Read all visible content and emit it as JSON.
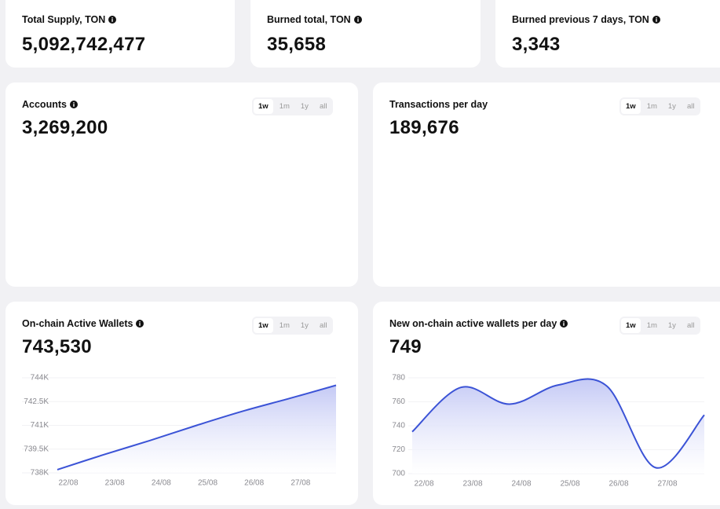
{
  "stats": [
    {
      "label": "Total Supply, TON",
      "value": "5,092,742,477"
    },
    {
      "label": "Burned total, TON",
      "value": "35,658"
    },
    {
      "label": "Burned previous 7 days, TON",
      "value": "3,343"
    }
  ],
  "panels": [
    {
      "title": "Accounts",
      "value": "3,269,200",
      "ranges": [
        "1w",
        "1m",
        "1y",
        "all"
      ]
    },
    {
      "title": "Transactions per day",
      "value": "189,676",
      "ranges": [
        "1w",
        "1m",
        "1y",
        "all"
      ]
    },
    {
      "title": "On-chain Active Wallets",
      "value": "743,530",
      "ranges": [
        "1w",
        "1m",
        "1y",
        "all"
      ]
    },
    {
      "title": "New on-chain active wallets per day",
      "value": "749",
      "ranges": [
        "1w",
        "1m",
        "1y",
        "all"
      ]
    }
  ],
  "chart_data": [
    {
      "type": "line",
      "categories": [
        "22/08",
        "23/08",
        "24/08",
        "25/08",
        "26/08",
        "27/08",
        null
      ],
      "series": [
        {
          "color": "#3b53d6",
          "values": [
            738200,
            739150,
            740050,
            741000,
            741900,
            742700,
            743530
          ]
        }
      ],
      "ylim": [
        738000,
        744000
      ],
      "yticks": [
        {
          "value": 738000,
          "label": "738K"
        },
        {
          "value": 739500,
          "label": "739.5K"
        },
        {
          "value": 741000,
          "label": "741K"
        },
        {
          "value": 742500,
          "label": "742.5K"
        },
        {
          "value": 744000,
          "label": "744K"
        }
      ],
      "grid": true
    },
    {
      "type": "line",
      "categories": [
        "22/08",
        "23/08",
        "24/08",
        "25/08",
        "26/08",
        "27/08",
        null
      ],
      "series": [
        {
          "color": "#3b53d6",
          "values": [
            735,
            772,
            758,
            774,
            773,
            705,
            749
          ]
        }
      ],
      "ylim": [
        700,
        780
      ],
      "yticks": [
        700,
        720,
        740,
        760,
        780
      ],
      "grid": true
    }
  ]
}
